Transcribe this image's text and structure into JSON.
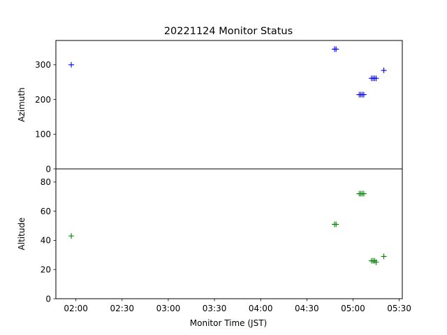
{
  "chart_data": {
    "type": "scatter",
    "title": "20221124 Monitor Status",
    "xlabel": "Monitor Time (JST)",
    "x_ticks": [
      "02:00",
      "02:30",
      "03:00",
      "03:30",
      "04:00",
      "04:30",
      "05:00",
      "05:30"
    ],
    "xlim": [
      "01:47",
      "05:32"
    ],
    "marker": "+",
    "grid": false,
    "panels": [
      {
        "ylabel": "Azimuth",
        "ylim": [
          0,
          370
        ],
        "y_ticks": [
          0,
          100,
          200,
          300
        ],
        "color": "#0000ff",
        "points": [
          {
            "x": "01:57",
            "y": 300
          },
          {
            "x": "04:48",
            "y": 345
          },
          {
            "x": "04:49",
            "y": 345
          },
          {
            "x": "05:04",
            "y": 214
          },
          {
            "x": "05:05",
            "y": 214
          },
          {
            "x": "05:06",
            "y": 214
          },
          {
            "x": "05:07",
            "y": 214
          },
          {
            "x": "05:12",
            "y": 261
          },
          {
            "x": "05:13",
            "y": 261
          },
          {
            "x": "05:14",
            "y": 261
          },
          {
            "x": "05:15",
            "y": 261
          },
          {
            "x": "05:20",
            "y": 284
          }
        ]
      },
      {
        "ylabel": "Altitude",
        "ylim": [
          0,
          89
        ],
        "y_ticks": [
          0,
          20,
          40,
          60,
          80
        ],
        "color": "#008000",
        "points": [
          {
            "x": "01:57",
            "y": 43
          },
          {
            "x": "04:48",
            "y": 51
          },
          {
            "x": "04:49",
            "y": 51
          },
          {
            "x": "05:04",
            "y": 72
          },
          {
            "x": "05:05",
            "y": 72
          },
          {
            "x": "05:06",
            "y": 72
          },
          {
            "x": "05:07",
            "y": 72
          },
          {
            "x": "05:12",
            "y": 26
          },
          {
            "x": "05:13",
            "y": 26
          },
          {
            "x": "05:14",
            "y": 26
          },
          {
            "x": "05:15",
            "y": 25
          },
          {
            "x": "05:20",
            "y": 29
          }
        ]
      }
    ]
  }
}
